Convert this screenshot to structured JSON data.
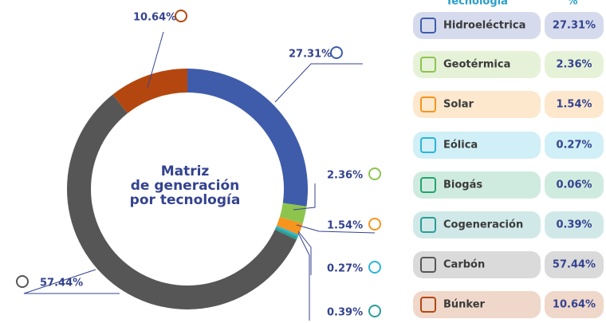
{
  "chart_data": {
    "type": "donut",
    "title_lines": [
      "Matriz",
      "de generación",
      "por tecnología"
    ],
    "table_headers": [
      "Tecnología",
      "%"
    ],
    "categories": [
      "Hidroeléctrica",
      "Geotérmica",
      "Solar",
      "Eólica",
      "Biogás",
      "Cogeneración",
      "Carbón",
      "Búnker"
    ],
    "values": [
      27.31,
      2.36,
      1.54,
      0.27,
      0.06,
      0.39,
      57.44,
      10.64
    ],
    "value_labels": [
      "27.31%",
      "2.36%",
      "1.54%",
      "0.27%",
      "0.06%",
      "0.39%",
      "57.44%",
      "10.64%"
    ],
    "colors": [
      "#3f5cab",
      "#8dc44e",
      "#f7941d",
      "#2bb5d8",
      "#23a36f",
      "#2a9d96",
      "#565656",
      "#b4470f"
    ]
  }
}
